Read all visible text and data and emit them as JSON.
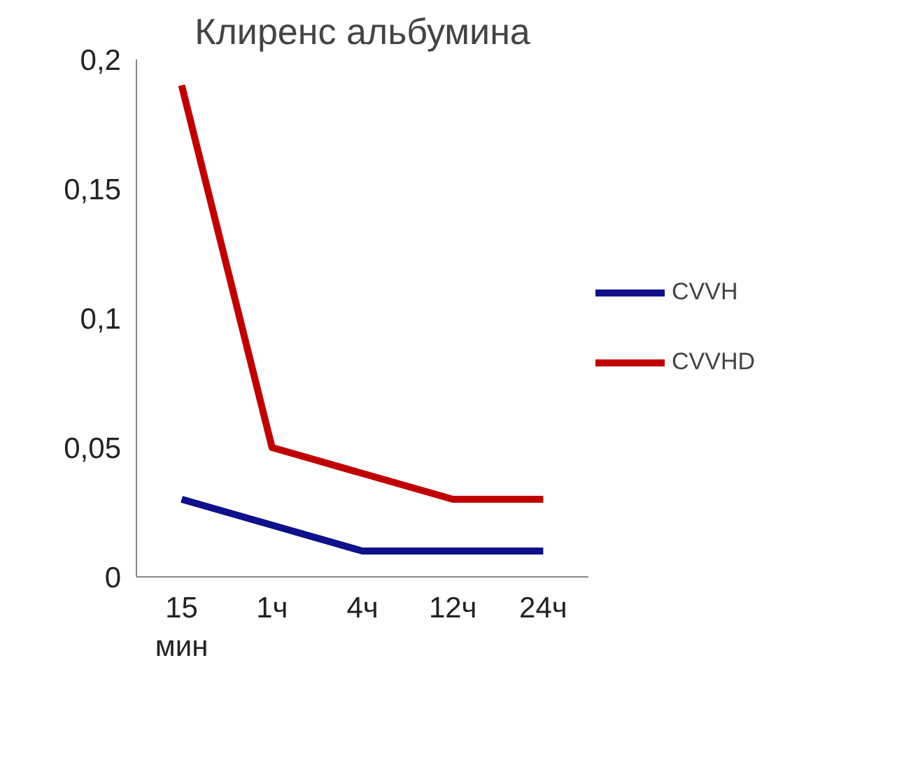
{
  "chart_data": {
    "type": "line",
    "title": "Клиренс альбумина",
    "categories": [
      "15 мин",
      "1ч",
      "4ч",
      "12ч",
      "24ч"
    ],
    "series": [
      {
        "name": "CVVH",
        "color": "#10108a",
        "values": [
          0.03,
          0.02,
          0.01,
          0.01,
          0.01
        ]
      },
      {
        "name": "CVVHD",
        "color": "#c00000",
        "values": [
          0.19,
          0.05,
          0.04,
          0.03,
          0.03
        ]
      }
    ],
    "ylim": [
      0,
      0.2
    ],
    "yticks": [
      {
        "value": 0,
        "label": "0"
      },
      {
        "value": 0.05,
        "label": "0,05"
      },
      {
        "value": 0.1,
        "label": "0,1"
      },
      {
        "value": 0.15,
        "label": "0,15"
      },
      {
        "value": 0.2,
        "label": "0,2"
      }
    ],
    "grid": false,
    "legend": "right",
    "marker": "none",
    "line_style": "solid"
  }
}
